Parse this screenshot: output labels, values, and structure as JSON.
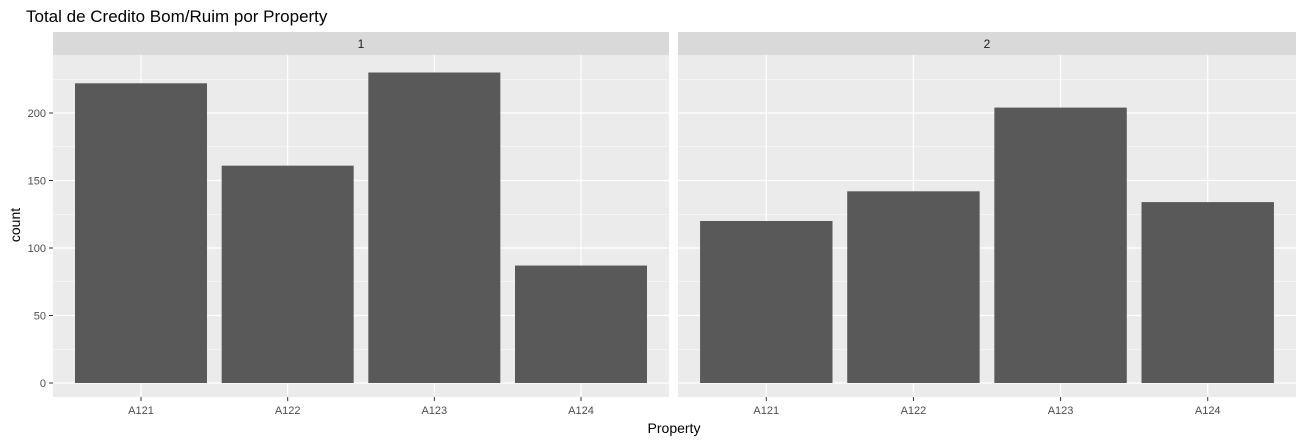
{
  "chart_data": {
    "type": "bar",
    "title": "Total de Credito Bom/Ruim por Property",
    "xlabel": "Property",
    "ylabel": "count",
    "ylim": [
      0,
      240
    ],
    "yticks": [
      0,
      50,
      100,
      150,
      200
    ],
    "grid": true,
    "categories": [
      "A121",
      "A122",
      "A123",
      "A124"
    ],
    "facets": [
      {
        "label": "1",
        "values": [
          222,
          161,
          230,
          87
        ]
      },
      {
        "label": "2",
        "values": [
          120,
          142,
          204,
          134
        ]
      }
    ],
    "colors": {
      "bar": "#595959",
      "panel_background": "#ebebeb",
      "strip_background": "#d9d9d9",
      "grid": "#ffffff"
    }
  }
}
